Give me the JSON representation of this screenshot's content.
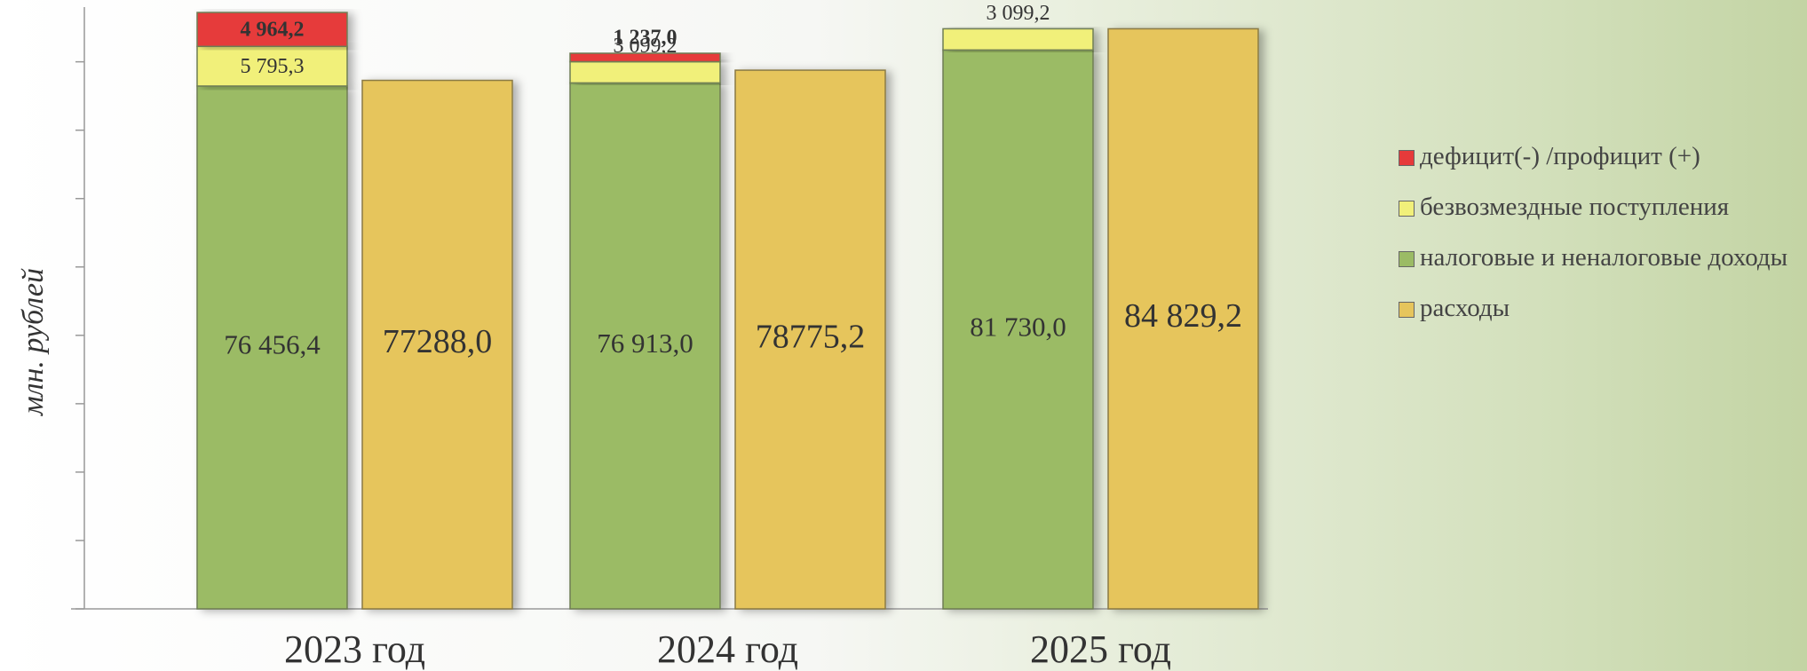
{
  "chart_data": {
    "type": "bar",
    "y_label": "млн. рублей",
    "categories": [
      "2023 год",
      "2024 год",
      "2025 год"
    ],
    "series": [
      {
        "name": "дефицит(-) /профицит (+)",
        "color": "#e63a3a",
        "values": [
          4964.2,
          1237.0,
          null
        ],
        "value_labels": [
          "4 964,2",
          "1 237,0",
          null
        ]
      },
      {
        "name": "безвозмездные поступления",
        "color": "#f1f07a",
        "values": [
          5795.3,
          3099.2,
          3099.2
        ],
        "value_labels": [
          "5 795,3",
          "3 099,2",
          "3 099,2"
        ]
      },
      {
        "name": "налоговые и неналоговые доходы",
        "color": "#9bbb65",
        "values": [
          76456.4,
          76913.0,
          81730.0
        ],
        "value_labels": [
          "76 456,4",
          "76 913,0",
          "81 730,0"
        ]
      },
      {
        "name": "расходы",
        "color": "#e6c55c",
        "values": [
          77288.0,
          78775.2,
          84829.2
        ],
        "value_labels": [
          "77288,0",
          "78775,2",
          "84 829,2"
        ]
      }
    ],
    "ylim": [
      0,
      88000
    ],
    "yticks": [
      0,
      10000,
      20000,
      30000,
      40000,
      50000,
      60000,
      70000,
      80000
    ],
    "grid": false
  }
}
